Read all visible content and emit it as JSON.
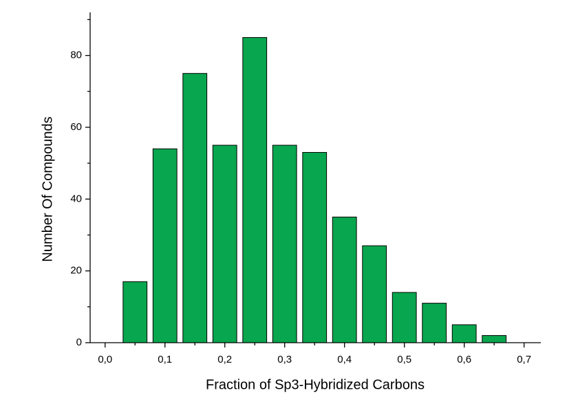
{
  "chart_data": {
    "type": "bar",
    "x_label": "Fraction of Sp3-Hybridized Carbons",
    "y_label": "Number Of Compounds",
    "x": [
      0.05,
      0.1,
      0.15,
      0.2,
      0.25,
      0.3,
      0.35,
      0.4,
      0.45,
      0.5,
      0.55,
      0.6,
      0.65
    ],
    "values": [
      17,
      54,
      75,
      55,
      85,
      55,
      53,
      35,
      27,
      14,
      11,
      5,
      2
    ],
    "color": "#08a64e",
    "xlim": [
      -0.025,
      0.728
    ],
    "xticks": [
      {
        "value": 0,
        "label": "0,0"
      },
      {
        "value": 0.1,
        "label": "0,1"
      },
      {
        "value": 0.2,
        "label": "0,2"
      },
      {
        "value": 0.3,
        "label": "0,3"
      },
      {
        "value": 0.4,
        "label": "0,4"
      },
      {
        "value": 0.5,
        "label": "0,5"
      },
      {
        "value": 0.6,
        "label": "0,6"
      },
      {
        "value": 0.7,
        "label": "0,7"
      }
    ],
    "xminorticks": [
      0.05,
      0.15,
      0.25,
      0.35,
      0.45,
      0.55,
      0.65
    ],
    "ylim": [
      0,
      92
    ],
    "yticks": [
      0,
      20,
      40,
      60,
      80
    ],
    "yminorticks": [
      10,
      30,
      50,
      70,
      90
    ]
  }
}
